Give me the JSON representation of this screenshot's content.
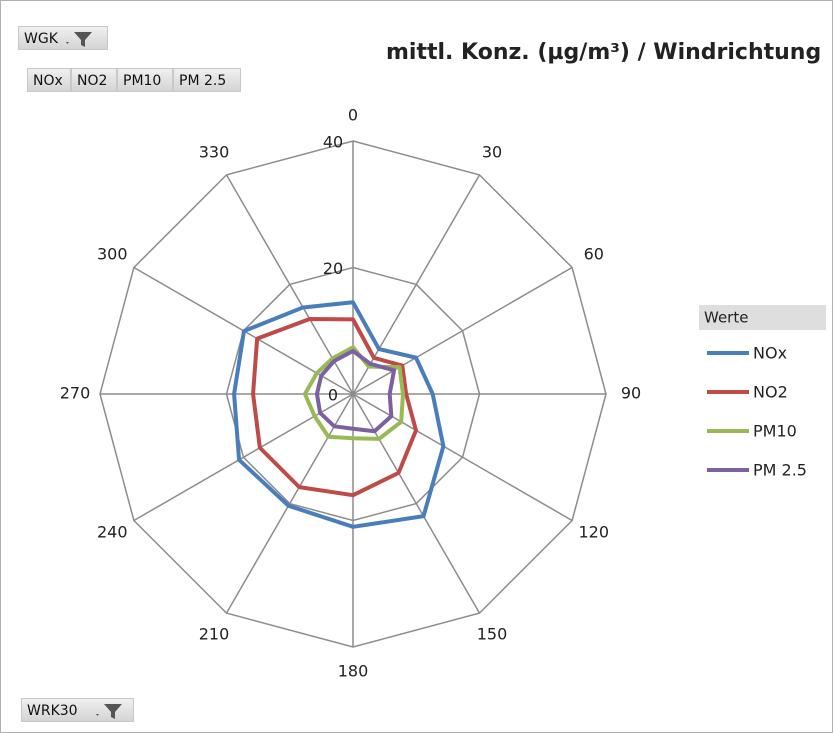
{
  "chart_data": {
    "type": "radar",
    "title": "mittl. Konz. (µg/m³) / Windrichtung",
    "report_filter": "WGK",
    "value_fields": [
      "NOx",
      "NO2",
      "PM10",
      "PM 2.5"
    ],
    "axis_field": "WRK30",
    "legend_title": "Werte",
    "categories": [
      "0",
      "30",
      "60",
      "90",
      "120",
      "150",
      "180",
      "210",
      "240",
      "270",
      "300",
      "330"
    ],
    "rlim": [
      0,
      40
    ],
    "rticks": [
      0,
      20,
      40
    ],
    "grid": true,
    "legend": "right",
    "series": [
      {
        "name": "NOx",
        "color": "#4a7ebb",
        "values": [
          14.5,
          8.2,
          11.5,
          12.6,
          16.5,
          22.3,
          21,
          20.4,
          20.8,
          18.8,
          19.9,
          15.8
        ]
      },
      {
        "name": "NO2",
        "color": "#be4b48",
        "values": [
          11.8,
          6.6,
          9,
          8.4,
          11.5,
          14.4,
          16,
          17,
          17,
          15.8,
          17.5,
          13.7
        ]
      },
      {
        "name": "PM10",
        "color": "#98b954",
        "values": [
          7.4,
          5,
          8.5,
          7.9,
          8.8,
          8.2,
          7,
          7.8,
          7,
          7.6,
          6.6,
          6.5
        ]
      },
      {
        "name": "PM 2.5",
        "color": "#7d60a0",
        "values": [
          6.8,
          5.5,
          7.5,
          5.8,
          7,
          6.8,
          5.5,
          5.9,
          6,
          5.7,
          5.8,
          6
        ]
      }
    ]
  }
}
